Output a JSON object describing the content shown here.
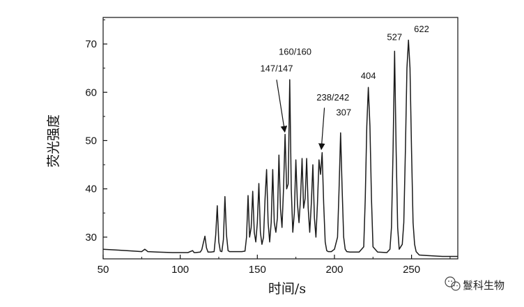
{
  "chart_data": {
    "type": "line",
    "xlabel": "时间/s",
    "ylabel": "荧光强度",
    "xlim": [
      50,
      280
    ],
    "ylim": [
      25.5,
      75.5
    ],
    "xticks": [
      50,
      100,
      150,
      200,
      250
    ],
    "yticks": [
      30,
      40,
      50,
      60,
      70
    ],
    "grid": false,
    "line_color": "#1a1a1a",
    "series": [
      {
        "x": [
          50,
          60,
          70,
          75,
          77,
          79,
          85,
          95,
          105,
          108,
          109,
          110,
          113,
          114,
          115,
          116,
          117,
          118,
          120,
          122,
          123,
          124,
          125,
          126,
          127,
          128,
          129,
          130,
          131,
          132,
          140,
          142,
          143,
          144,
          145,
          146,
          147,
          148,
          149,
          150,
          151,
          152,
          153,
          154,
          155,
          156,
          157,
          158,
          159,
          160,
          161,
          162,
          163,
          164,
          165,
          166,
          167,
          168,
          169,
          170,
          171,
          172,
          173,
          174,
          175,
          176,
          177,
          178,
          179,
          180,
          181,
          182,
          183,
          184,
          185,
          186,
          187,
          188,
          189,
          190,
          191,
          192,
          193,
          194,
          195,
          196,
          198,
          200,
          202,
          203,
          204,
          205,
          206,
          207,
          208,
          210,
          216,
          219,
          220,
          221,
          222,
          223,
          224,
          225,
          228,
          234,
          236,
          237,
          238,
          239,
          240,
          241,
          242,
          244,
          245,
          246,
          247,
          248,
          249,
          250,
          251,
          252,
          253,
          255,
          260,
          270,
          280
        ],
        "y": [
          27.5,
          27.3,
          27.1,
          27.0,
          27.5,
          27.0,
          26.9,
          26.8,
          26.8,
          27.2,
          26.8,
          26.8,
          26.9,
          27.4,
          28.8,
          30.2,
          27.8,
          26.9,
          26.9,
          27.0,
          30.5,
          36.5,
          29.0,
          27.1,
          27.0,
          29.5,
          38.4,
          30.5,
          27.2,
          27.0,
          27.0,
          27.1,
          30.0,
          38.6,
          30.0,
          32.0,
          39.5,
          31.0,
          29.0,
          33.0,
          41.1,
          31.0,
          28.5,
          30.0,
          38.0,
          44.0,
          33.0,
          29.0,
          33.0,
          44.0,
          33.0,
          31.0,
          34.0,
          47.0,
          36.0,
          32.0,
          40.0,
          51.3,
          40.0,
          41.0,
          62.6,
          40.0,
          31.0,
          35.0,
          46.0,
          37.0,
          33.0,
          38.0,
          46.3,
          36.0,
          38.0,
          46.3,
          36.0,
          31.0,
          37.0,
          45.0,
          34.0,
          30.0,
          37.0,
          46.0,
          43.0,
          47.5,
          37.0,
          29.0,
          27.2,
          27.0,
          27.0,
          27.5,
          30.0,
          40.0,
          51.6,
          40.0,
          30.0,
          27.5,
          27.0,
          26.9,
          26.9,
          28.0,
          38.0,
          53.0,
          61.0,
          53.0,
          38.0,
          28.0,
          26.9,
          26.8,
          27.5,
          32.0,
          48.0,
          68.5,
          48.0,
          32.0,
          27.5,
          28.5,
          33.0,
          48.0,
          65.0,
          70.8,
          65.0,
          48.0,
          33.0,
          28.5,
          27.0,
          26.3,
          26.2,
          26.0,
          26.0
        ]
      }
    ],
    "annotations": [
      {
        "text": "147/147",
        "x": 162.5,
        "y": 64.3
      },
      {
        "text": "160/160",
        "x": 174.5,
        "y": 67.8
      },
      {
        "text": "238/242",
        "x": 199.0,
        "y": 58.3
      },
      {
        "text": "307",
        "x": 206.0,
        "y": 55.2
      },
      {
        "text": "404",
        "x": 222.0,
        "y": 62.8
      },
      {
        "text": "527",
        "x": 239.0,
        "y": 70.8
      },
      {
        "text": "622",
        "x": 256.5,
        "y": 72.5
      }
    ]
  },
  "watermark": {
    "text": "鬘科生物",
    "icon": "wechat-icon"
  }
}
